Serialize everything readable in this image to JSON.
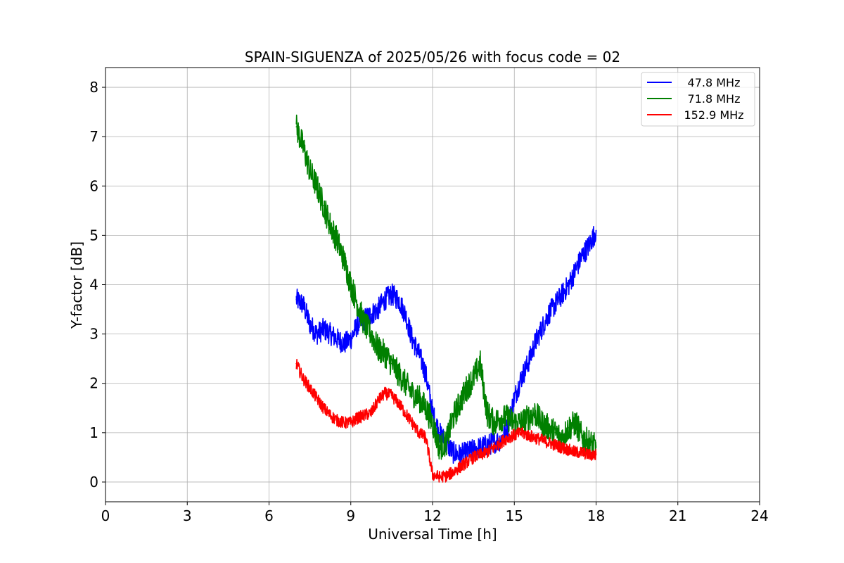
{
  "chart_data": {
    "type": "line",
    "title": "SPAIN-SIGUENZA of 2025/05/26 with focus code = 02",
    "xlabel": "Universal Time [h]",
    "ylabel": "Y-factor [dB]",
    "xlim": [
      0,
      24
    ],
    "ylim": [
      -0.4,
      8.4
    ],
    "xticks": [
      0,
      3,
      6,
      9,
      12,
      15,
      18,
      21,
      24
    ],
    "yticks": [
      0,
      1,
      2,
      3,
      4,
      5,
      6,
      7,
      8
    ],
    "grid": true,
    "legend_position": "top-right",
    "series": [
      {
        "name": "47.8 MHz",
        "color": "#0000ff",
        "x": [
          7.0,
          7.25,
          7.5,
          7.75,
          8.0,
          8.25,
          8.5,
          8.75,
          9.0,
          9.25,
          9.5,
          9.75,
          10.0,
          10.25,
          10.5,
          10.75,
          11.0,
          11.25,
          11.5,
          11.75,
          12.0,
          12.25,
          12.5,
          12.75,
          13.0,
          13.25,
          13.5,
          13.75,
          14.0,
          14.25,
          14.5,
          14.75,
          15.0,
          15.25,
          15.5,
          15.75,
          16.0,
          16.25,
          16.5,
          16.75,
          17.0,
          17.25,
          17.5,
          17.75,
          18.0
        ],
        "y": [
          3.7,
          3.6,
          3.2,
          3.0,
          3.1,
          3.0,
          2.9,
          2.8,
          2.9,
          3.2,
          3.3,
          3.4,
          3.5,
          3.7,
          3.8,
          3.7,
          3.4,
          2.9,
          2.6,
          2.2,
          1.4,
          1.0,
          0.8,
          0.6,
          0.55,
          0.6,
          0.65,
          0.7,
          0.75,
          0.8,
          0.85,
          1.1,
          1.7,
          2.1,
          2.4,
          2.8,
          3.1,
          3.4,
          3.6,
          3.8,
          4.0,
          4.3,
          4.6,
          4.8,
          5.1
        ]
      },
      {
        "name": "71.8 MHz",
        "color": "#008000",
        "x": [
          7.0,
          7.25,
          7.5,
          7.75,
          8.0,
          8.25,
          8.5,
          8.75,
          9.0,
          9.25,
          9.5,
          9.75,
          10.0,
          10.25,
          10.5,
          10.75,
          11.0,
          11.25,
          11.5,
          11.75,
          12.0,
          12.25,
          12.5,
          12.75,
          13.0,
          13.25,
          13.5,
          13.75,
          14.0,
          14.25,
          14.5,
          14.75,
          15.0,
          15.25,
          15.5,
          15.75,
          16.0,
          16.25,
          16.5,
          16.75,
          17.0,
          17.25,
          17.5,
          17.75,
          18.0
        ],
        "y": [
          7.2,
          6.8,
          6.3,
          6.0,
          5.6,
          5.2,
          4.9,
          4.5,
          4.0,
          3.6,
          3.2,
          3.0,
          2.7,
          2.6,
          2.4,
          2.2,
          2.0,
          1.8,
          1.7,
          1.5,
          1.2,
          0.7,
          0.8,
          1.3,
          1.6,
          1.9,
          2.1,
          2.4,
          1.4,
          1.2,
          1.3,
          1.3,
          1.2,
          1.2,
          1.3,
          1.4,
          1.2,
          1.1,
          1.0,
          0.9,
          1.1,
          1.2,
          0.9,
          0.8,
          0.7
        ]
      },
      {
        "name": "152.9 MHz",
        "color": "#ff0000",
        "x": [
          7.0,
          7.25,
          7.5,
          7.75,
          8.0,
          8.25,
          8.5,
          8.75,
          9.0,
          9.25,
          9.5,
          9.75,
          10.0,
          10.25,
          10.5,
          10.75,
          11.0,
          11.25,
          11.5,
          11.75,
          12.0,
          12.25,
          12.5,
          12.75,
          13.0,
          13.25,
          13.5,
          13.75,
          14.0,
          14.25,
          14.5,
          14.75,
          15.0,
          15.25,
          15.5,
          15.75,
          16.0,
          16.25,
          16.5,
          16.75,
          17.0,
          17.25,
          17.5,
          17.75,
          18.0
        ],
        "y": [
          2.4,
          2.1,
          1.9,
          1.7,
          1.5,
          1.35,
          1.25,
          1.2,
          1.2,
          1.3,
          1.35,
          1.4,
          1.65,
          1.8,
          1.75,
          1.6,
          1.4,
          1.2,
          1.0,
          0.9,
          0.15,
          0.1,
          0.12,
          0.2,
          0.3,
          0.4,
          0.5,
          0.55,
          0.6,
          0.7,
          0.8,
          0.9,
          0.95,
          1.0,
          0.95,
          0.9,
          0.85,
          0.8,
          0.75,
          0.7,
          0.65,
          0.6,
          0.6,
          0.55,
          0.55
        ]
      }
    ]
  }
}
